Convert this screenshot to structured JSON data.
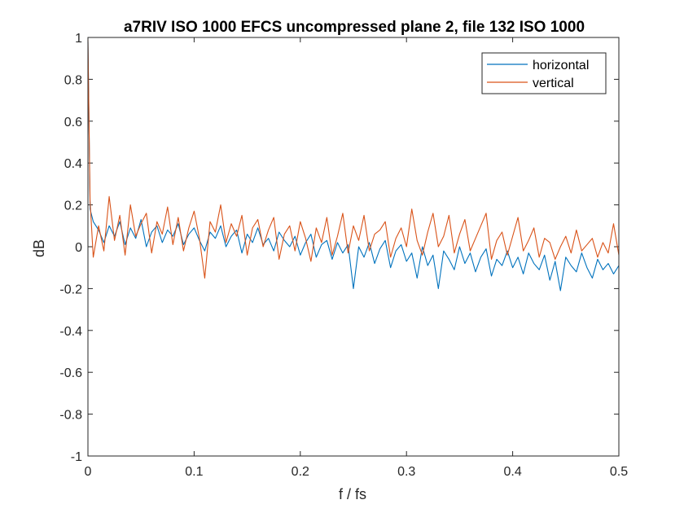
{
  "chart_data": {
    "type": "line",
    "title": "a7RIV ISO 1000 EFCS uncompressed plane 2, file 132 ISO 1000",
    "xlabel": "f / fs",
    "ylabel": "dB",
    "xlim": [
      0,
      0.5
    ],
    "ylim": [
      -1,
      1
    ],
    "xticks": [
      "0",
      "0.1",
      "0.2",
      "0.3",
      "0.4",
      "0.5"
    ],
    "yticks": [
      "-1",
      "-0.8",
      "-0.6",
      "-0.4",
      "-0.2",
      "0",
      "0.2",
      "0.4",
      "0.6",
      "0.8",
      "1"
    ],
    "grid": false,
    "legend_position": "top-right",
    "series": [
      {
        "name": "horizontal",
        "color": "#0072BD",
        "x": [
          0,
          0.002,
          0.005,
          0.01,
          0.015,
          0.02,
          0.025,
          0.03,
          0.035,
          0.04,
          0.045,
          0.05,
          0.055,
          0.06,
          0.065,
          0.07,
          0.075,
          0.08,
          0.085,
          0.09,
          0.095,
          0.1,
          0.105,
          0.11,
          0.115,
          0.12,
          0.125,
          0.13,
          0.135,
          0.14,
          0.145,
          0.15,
          0.155,
          0.16,
          0.165,
          0.17,
          0.175,
          0.18,
          0.185,
          0.19,
          0.195,
          0.2,
          0.205,
          0.21,
          0.215,
          0.22,
          0.225,
          0.23,
          0.235,
          0.24,
          0.245,
          0.25,
          0.255,
          0.26,
          0.265,
          0.27,
          0.275,
          0.28,
          0.285,
          0.29,
          0.295,
          0.3,
          0.305,
          0.31,
          0.315,
          0.32,
          0.325,
          0.33,
          0.335,
          0.34,
          0.345,
          0.35,
          0.355,
          0.36,
          0.365,
          0.37,
          0.375,
          0.38,
          0.385,
          0.39,
          0.395,
          0.4,
          0.405,
          0.41,
          0.415,
          0.42,
          0.425,
          0.43,
          0.435,
          0.44,
          0.445,
          0.45,
          0.455,
          0.46,
          0.465,
          0.47,
          0.475,
          0.48,
          0.485,
          0.49,
          0.495,
          0.5
        ],
        "y": [
          0.98,
          0.18,
          0.12,
          0.08,
          0.02,
          0.1,
          0.05,
          0.12,
          0.01,
          0.09,
          0.04,
          0.13,
          0.0,
          0.07,
          0.1,
          0.02,
          0.08,
          0.05,
          0.11,
          0.01,
          0.06,
          0.09,
          0.03,
          -0.02,
          0.07,
          0.04,
          0.1,
          0.0,
          0.05,
          0.08,
          -0.03,
          0.06,
          0.02,
          0.09,
          0.01,
          0.04,
          -0.02,
          0.07,
          0.03,
          0.0,
          0.05,
          -0.04,
          0.02,
          0.06,
          -0.05,
          0.01,
          0.03,
          -0.06,
          0.02,
          -0.03,
          0.01,
          -0.2,
          0.0,
          -0.05,
          0.02,
          -0.08,
          -0.01,
          0.03,
          -0.1,
          -0.02,
          0.01,
          -0.07,
          -0.03,
          -0.15,
          0.0,
          -0.09,
          -0.04,
          -0.2,
          -0.02,
          -0.06,
          -0.11,
          0.0,
          -0.08,
          -0.03,
          -0.12,
          -0.05,
          -0.01,
          -0.14,
          -0.06,
          -0.09,
          -0.02,
          -0.1,
          -0.05,
          -0.13,
          -0.03,
          -0.08,
          -0.11,
          -0.04,
          -0.16,
          -0.07,
          -0.21,
          -0.05,
          -0.09,
          -0.12,
          -0.03,
          -0.1,
          -0.15,
          -0.06,
          -0.11,
          -0.08,
          -0.13,
          -0.09
        ]
      },
      {
        "name": "vertical",
        "color": "#D95319",
        "x": [
          0,
          0.002,
          0.005,
          0.01,
          0.015,
          0.02,
          0.025,
          0.03,
          0.035,
          0.04,
          0.045,
          0.05,
          0.055,
          0.06,
          0.065,
          0.07,
          0.075,
          0.08,
          0.085,
          0.09,
          0.095,
          0.1,
          0.105,
          0.11,
          0.115,
          0.12,
          0.125,
          0.13,
          0.135,
          0.14,
          0.145,
          0.15,
          0.155,
          0.16,
          0.165,
          0.17,
          0.175,
          0.18,
          0.185,
          0.19,
          0.195,
          0.2,
          0.205,
          0.21,
          0.215,
          0.22,
          0.225,
          0.23,
          0.235,
          0.24,
          0.245,
          0.25,
          0.255,
          0.26,
          0.265,
          0.27,
          0.275,
          0.28,
          0.285,
          0.29,
          0.295,
          0.3,
          0.305,
          0.31,
          0.315,
          0.32,
          0.325,
          0.33,
          0.335,
          0.34,
          0.345,
          0.35,
          0.355,
          0.36,
          0.365,
          0.37,
          0.375,
          0.38,
          0.385,
          0.39,
          0.395,
          0.4,
          0.405,
          0.41,
          0.415,
          0.42,
          0.425,
          0.43,
          0.435,
          0.44,
          0.445,
          0.45,
          0.455,
          0.46,
          0.465,
          0.47,
          0.475,
          0.48,
          0.485,
          0.49,
          0.495,
          0.5
        ],
        "y": [
          0.99,
          0.22,
          -0.05,
          0.1,
          -0.02,
          0.24,
          0.03,
          0.15,
          -0.04,
          0.2,
          0.05,
          0.11,
          0.16,
          -0.03,
          0.12,
          0.06,
          0.19,
          0.01,
          0.14,
          -0.02,
          0.09,
          0.17,
          0.04,
          -0.15,
          0.12,
          0.07,
          0.2,
          0.02,
          0.11,
          0.05,
          0.15,
          -0.04,
          0.09,
          0.13,
          0.0,
          0.08,
          0.14,
          -0.06,
          0.06,
          0.1,
          -0.02,
          0.12,
          0.04,
          -0.07,
          0.09,
          0.02,
          0.14,
          -0.04,
          0.05,
          0.16,
          -0.03,
          0.1,
          0.03,
          0.15,
          -0.02,
          0.06,
          0.08,
          0.12,
          -0.05,
          0.04,
          0.09,
          0.0,
          0.18,
          0.03,
          -0.04,
          0.07,
          0.16,
          0.0,
          0.05,
          0.15,
          -0.03,
          0.06,
          0.13,
          -0.02,
          0.04,
          0.1,
          0.16,
          -0.06,
          0.03,
          0.07,
          -0.04,
          0.05,
          0.14,
          -0.02,
          0.03,
          0.09,
          -0.05,
          0.04,
          0.02,
          -0.06,
          0.0,
          0.05,
          -0.03,
          0.08,
          -0.02,
          0.01,
          0.04,
          -0.05,
          0.02,
          -0.03,
          0.11,
          -0.04
        ]
      }
    ]
  }
}
